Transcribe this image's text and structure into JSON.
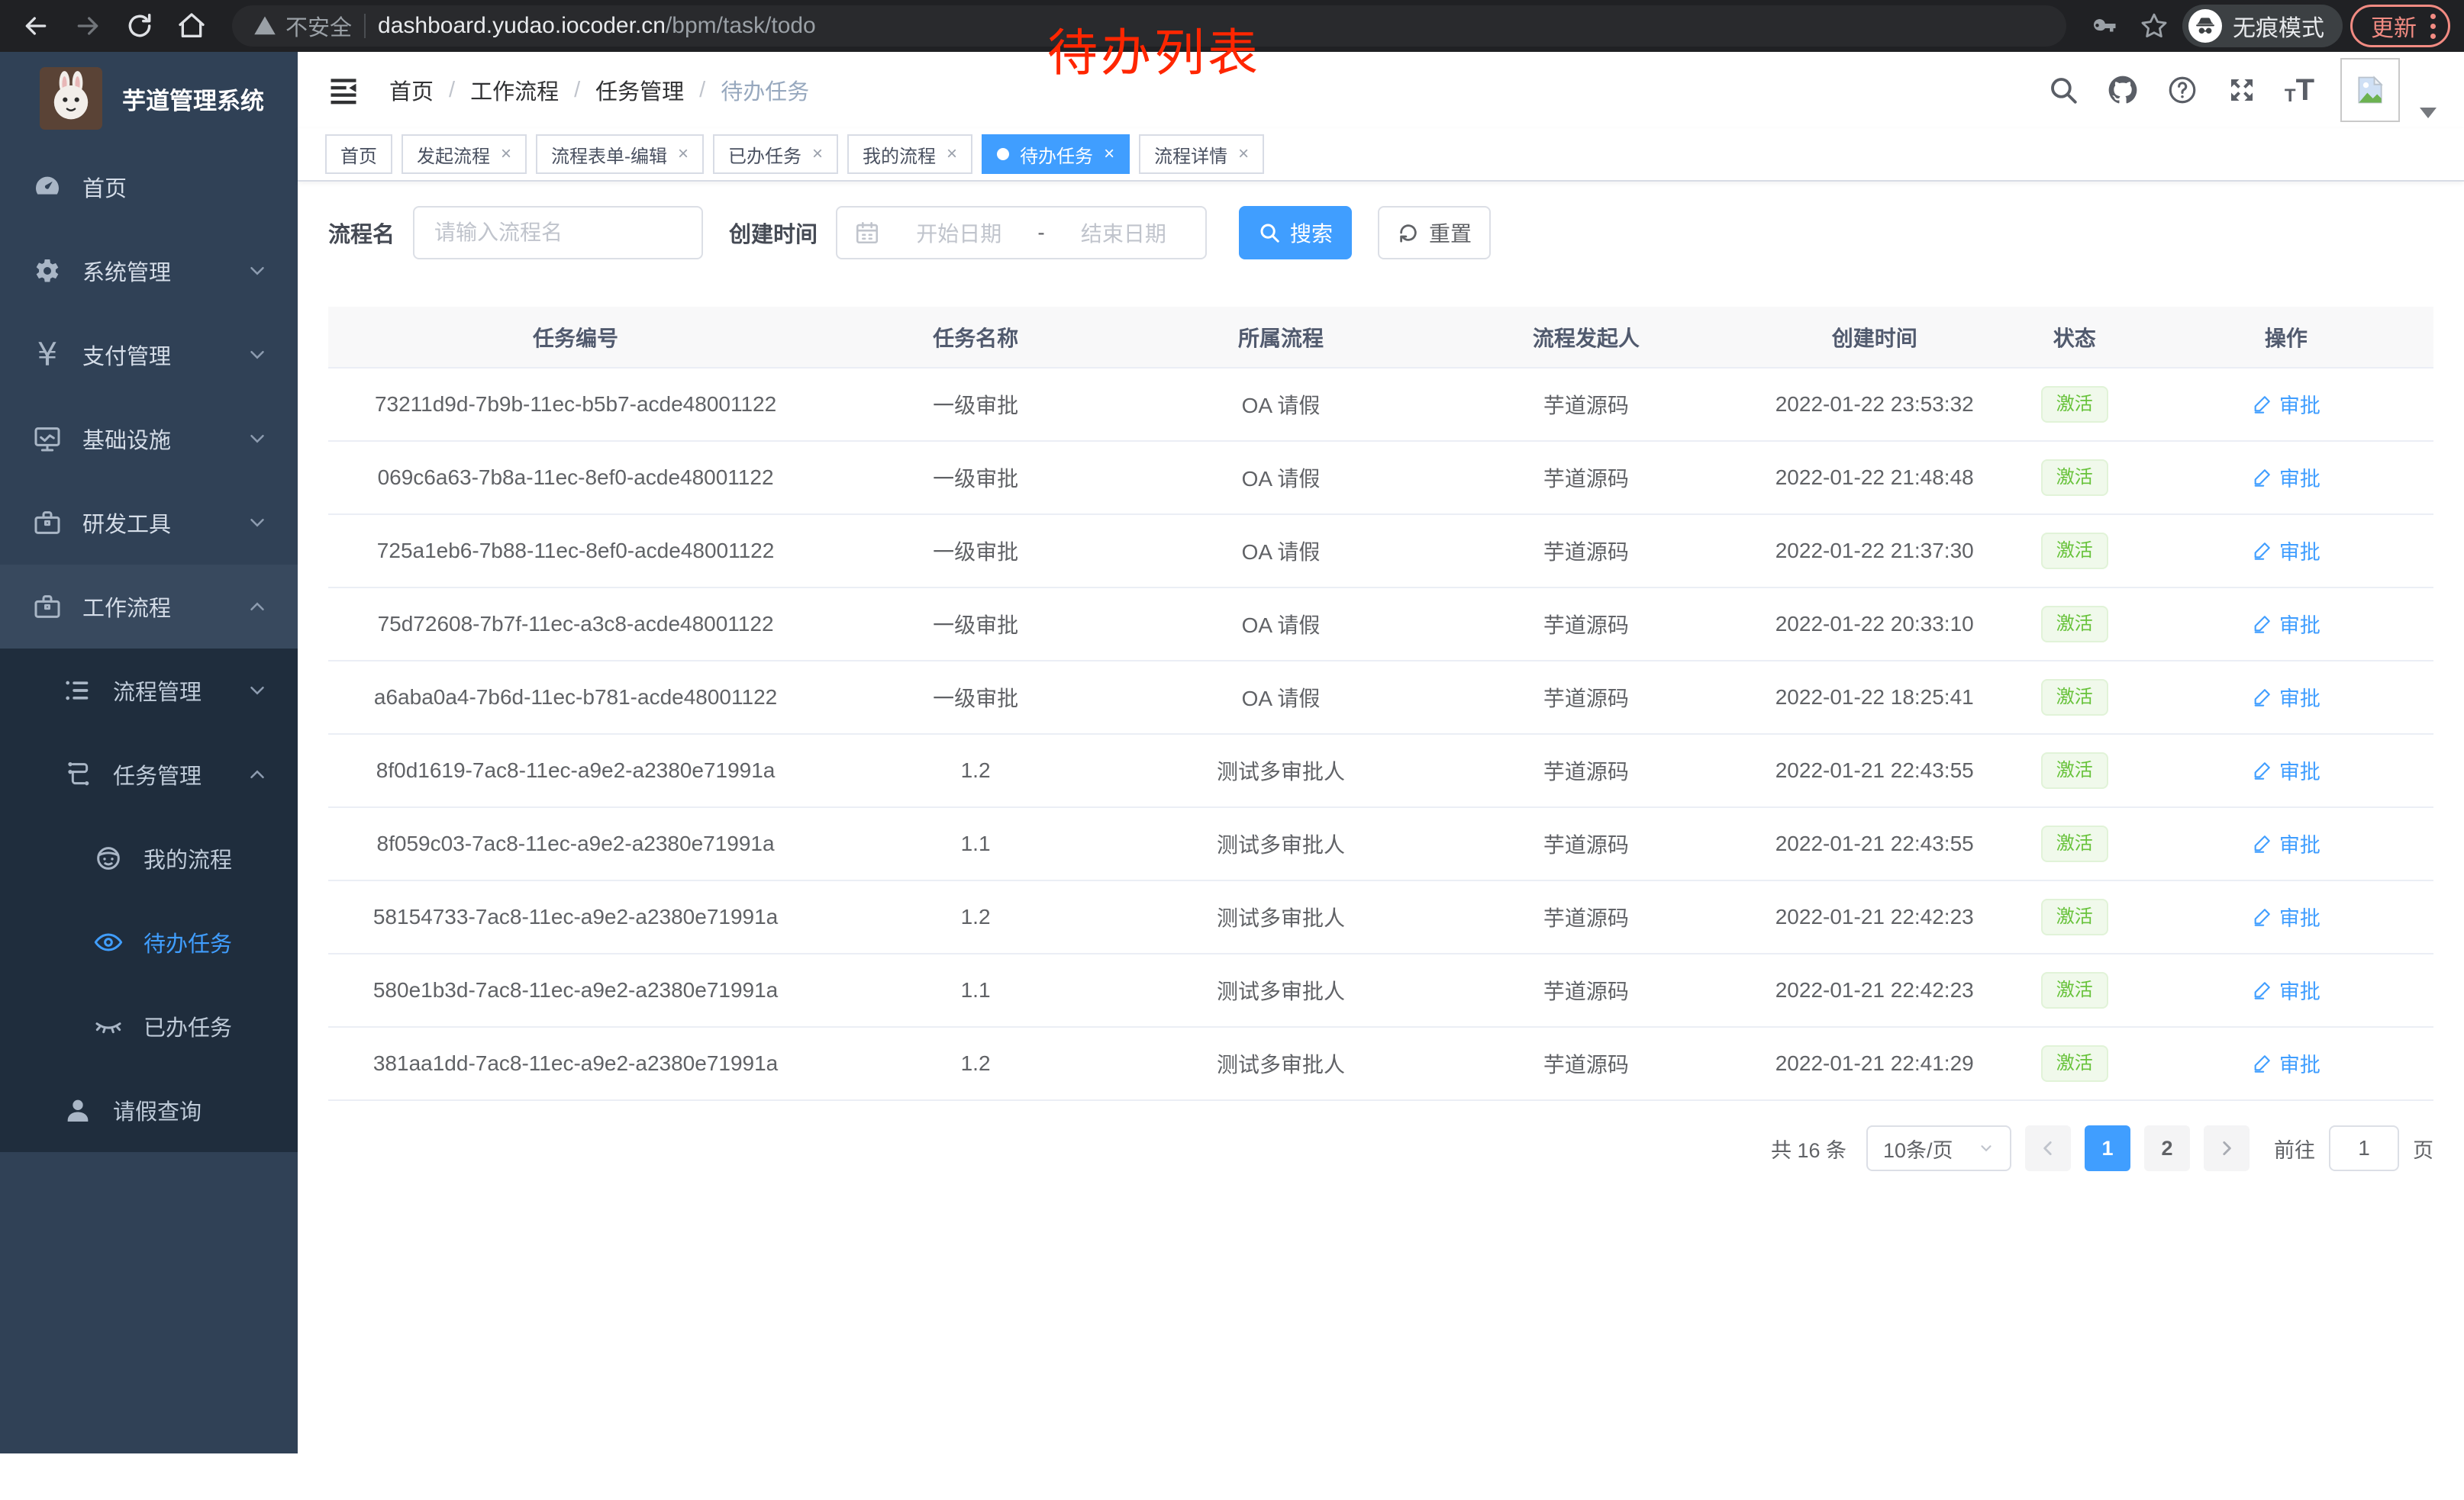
{
  "browser": {
    "security_label": "不安全",
    "url_domain": "dashboard.yudao.iocoder.cn",
    "url_path": "/bpm/task/todo",
    "incognito_label": "无痕模式",
    "update_label": "更新"
  },
  "annotation": {
    "text": "待办列表",
    "color": "#ff2600"
  },
  "sidebar": {
    "title": "芋道管理系统",
    "items": [
      {
        "label": "首页"
      },
      {
        "label": "系统管理"
      },
      {
        "label": "支付管理"
      },
      {
        "label": "基础设施"
      },
      {
        "label": "研发工具"
      },
      {
        "label": "工作流程"
      },
      {
        "label": "流程管理"
      },
      {
        "label": "任务管理"
      },
      {
        "label": "我的流程"
      },
      {
        "label": "待办任务"
      },
      {
        "label": "已办任务"
      },
      {
        "label": "请假查询"
      }
    ]
  },
  "breadcrumb": {
    "items": [
      "首页",
      "工作流程",
      "任务管理",
      "待办任务"
    ],
    "separator": "/"
  },
  "tabs": [
    {
      "label": "首页"
    },
    {
      "label": "发起流程"
    },
    {
      "label": "流程表单-编辑"
    },
    {
      "label": "已办任务"
    },
    {
      "label": "我的流程"
    },
    {
      "label": "待办任务"
    },
    {
      "label": "流程详情"
    }
  ],
  "filters": {
    "name_label": "流程名",
    "name_placeholder": "请输入流程名",
    "time_label": "创建时间",
    "start_placeholder": "开始日期",
    "range_separator": "-",
    "end_placeholder": "结束日期",
    "search_label": "搜索",
    "reset_label": "重置"
  },
  "table": {
    "headers": [
      "任务编号",
      "任务名称",
      "所属流程",
      "流程发起人",
      "创建时间",
      "状态",
      "操作"
    ],
    "rows": [
      {
        "id": "73211d9d-7b9b-11ec-b5b7-acde48001122",
        "name": "一级审批",
        "process": "OA 请假",
        "starter": "芋道源码",
        "created": "2022-01-22 23:53:32",
        "status": "激活",
        "action": "审批"
      },
      {
        "id": "069c6a63-7b8a-11ec-8ef0-acde48001122",
        "name": "一级审批",
        "process": "OA 请假",
        "starter": "芋道源码",
        "created": "2022-01-22 21:48:48",
        "status": "激活",
        "action": "审批"
      },
      {
        "id": "725a1eb6-7b88-11ec-8ef0-acde48001122",
        "name": "一级审批",
        "process": "OA 请假",
        "starter": "芋道源码",
        "created": "2022-01-22 21:37:30",
        "status": "激活",
        "action": "审批"
      },
      {
        "id": "75d72608-7b7f-11ec-a3c8-acde48001122",
        "name": "一级审批",
        "process": "OA 请假",
        "starter": "芋道源码",
        "created": "2022-01-22 20:33:10",
        "status": "激活",
        "action": "审批"
      },
      {
        "id": "a6aba0a4-7b6d-11ec-b781-acde48001122",
        "name": "一级审批",
        "process": "OA 请假",
        "starter": "芋道源码",
        "created": "2022-01-22 18:25:41",
        "status": "激活",
        "action": "审批"
      },
      {
        "id": "8f0d1619-7ac8-11ec-a9e2-a2380e71991a",
        "name": "1.2",
        "process": "测试多审批人",
        "starter": "芋道源码",
        "created": "2022-01-21 22:43:55",
        "status": "激活",
        "action": "审批"
      },
      {
        "id": "8f059c03-7ac8-11ec-a9e2-a2380e71991a",
        "name": "1.1",
        "process": "测试多审批人",
        "starter": "芋道源码",
        "created": "2022-01-21 22:43:55",
        "status": "激活",
        "action": "审批"
      },
      {
        "id": "58154733-7ac8-11ec-a9e2-a2380e71991a",
        "name": "1.2",
        "process": "测试多审批人",
        "starter": "芋道源码",
        "created": "2022-01-21 22:42:23",
        "status": "激活",
        "action": "审批"
      },
      {
        "id": "580e1b3d-7ac8-11ec-a9e2-a2380e71991a",
        "name": "1.1",
        "process": "测试多审批人",
        "starter": "芋道源码",
        "created": "2022-01-21 22:42:23",
        "status": "激活",
        "action": "审批"
      },
      {
        "id": "381aa1dd-7ac8-11ec-a9e2-a2380e71991a",
        "name": "1.2",
        "process": "测试多审批人",
        "starter": "芋道源码",
        "created": "2022-01-21 22:41:29",
        "status": "激活",
        "action": "审批"
      }
    ]
  },
  "pagination": {
    "total_label": "共 16 条",
    "page_size_label": "10条/页",
    "pages": [
      "1",
      "2"
    ],
    "goto_label": "前往",
    "goto_value": "1",
    "page_suffix": "页"
  },
  "colors": {
    "accent": "#409eff",
    "status_green": "#67c23a",
    "sidebar_bg": "#304156",
    "submenu_bg": "#1f2d3d"
  }
}
